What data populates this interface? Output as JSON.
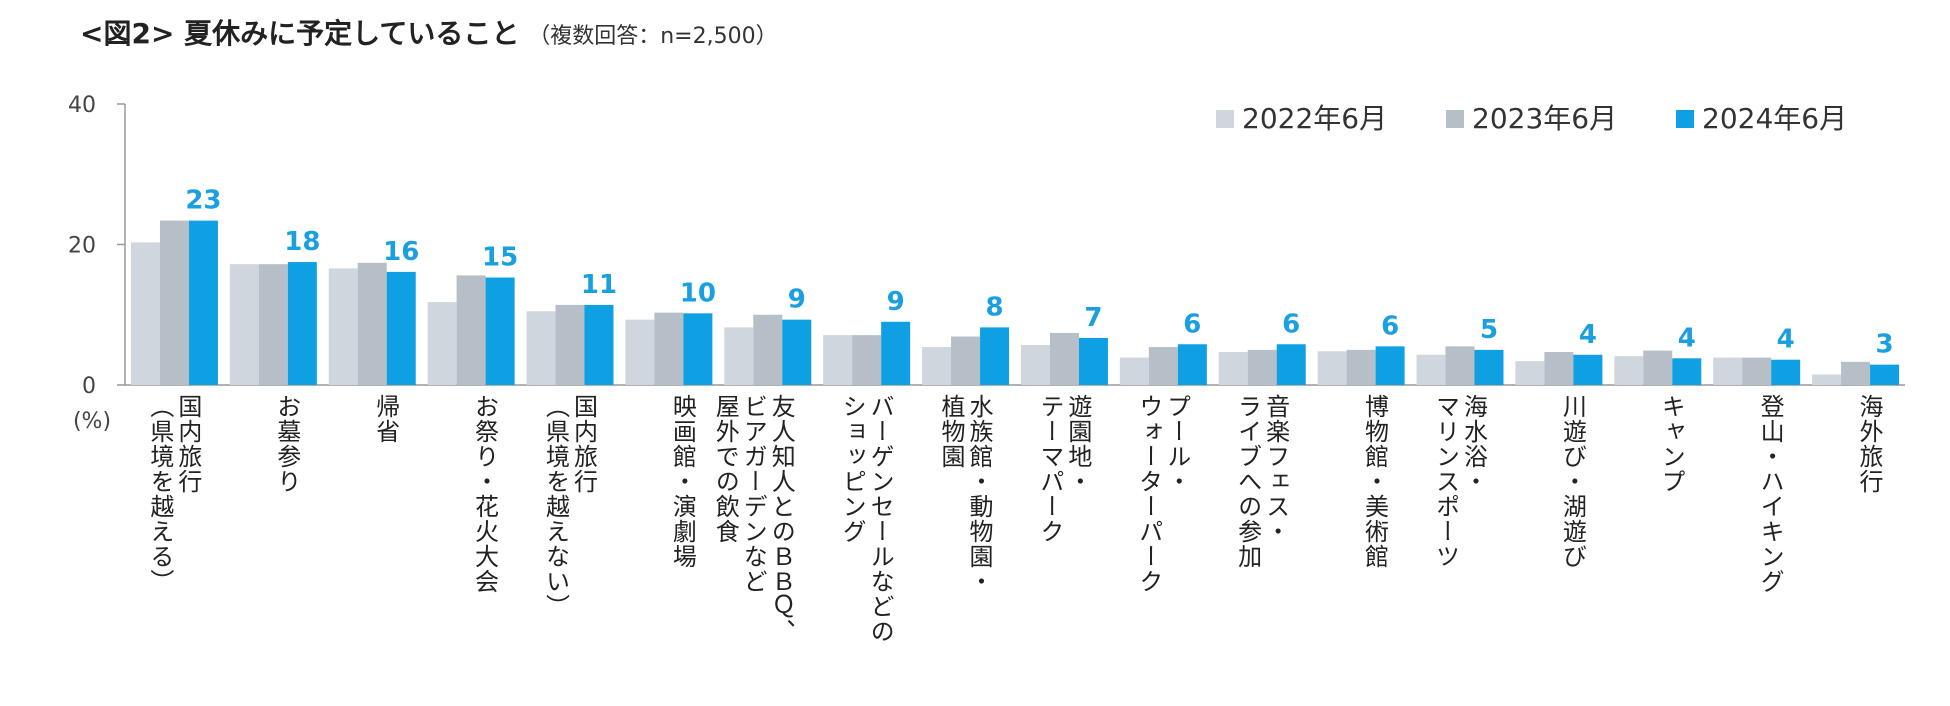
{
  "title": "<図2> 夏休みに予定していること",
  "subtitle": "（複数回答：n=2,500）",
  "colors": {
    "s2022": "#d0d6de",
    "s2023": "#b6bec8",
    "s2024": "#0ea0e2",
    "axis": "#999999"
  },
  "chart_data": {
    "type": "bar",
    "ylabel": "(%)",
    "ylim": [
      0,
      40
    ],
    "yticks": [
      "0",
      "20",
      "40"
    ],
    "legend_position": "top-right",
    "categories": [
      "国内旅行\n（県境を越える）",
      "お墓参り",
      "帰省",
      "お祭り・花火大会",
      "国内旅行\n（県境を越えない）",
      "映画館・演劇場",
      "友人知人とのＢＢＱ、\nビアガーデンなど\n屋外での飲食",
      "バーゲンセールなどの\nショッピング",
      "水族館・動物園・\n植物園",
      "遊園地・\nテーマパーク",
      "プール・\nウォーターパーク",
      "音楽フェス・\nライブへの参加",
      "博物館・美術館",
      "海水浴・\nマリンスポーツ",
      "川遊び・湖遊び",
      "キャンプ",
      "登山・ハイキング",
      "海外旅行"
    ],
    "series": [
      {
        "name": "2022年6月",
        "values": [
          20.3,
          17.2,
          16.6,
          11.8,
          10.5,
          9.3,
          8.2,
          7.1,
          5.4,
          5.7,
          3.9,
          4.7,
          4.8,
          4.3,
          3.4,
          4.1,
          3.9,
          1.5
        ]
      },
      {
        "name": "2023年6月",
        "values": [
          23.4,
          17.2,
          17.4,
          15.6,
          11.4,
          10.3,
          10.0,
          7.1,
          6.9,
          7.4,
          5.4,
          5.0,
          5.0,
          5.5,
          4.7,
          4.9,
          3.9,
          3.3
        ]
      },
      {
        "name": "2024年6月",
        "values": [
          23.4,
          17.5,
          16.1,
          15.3,
          11.4,
          10.2,
          9.3,
          9.0,
          8.2,
          6.7,
          5.8,
          5.8,
          5.5,
          5.0,
          4.3,
          3.8,
          3.6,
          2.9
        ]
      }
    ],
    "data_labels": [
      "23",
      "18",
      "16",
      "15",
      "11",
      "10",
      "9",
      "9",
      "8",
      "7",
      "6",
      "6",
      "6",
      "5",
      "4",
      "4",
      "4",
      "3"
    ]
  }
}
